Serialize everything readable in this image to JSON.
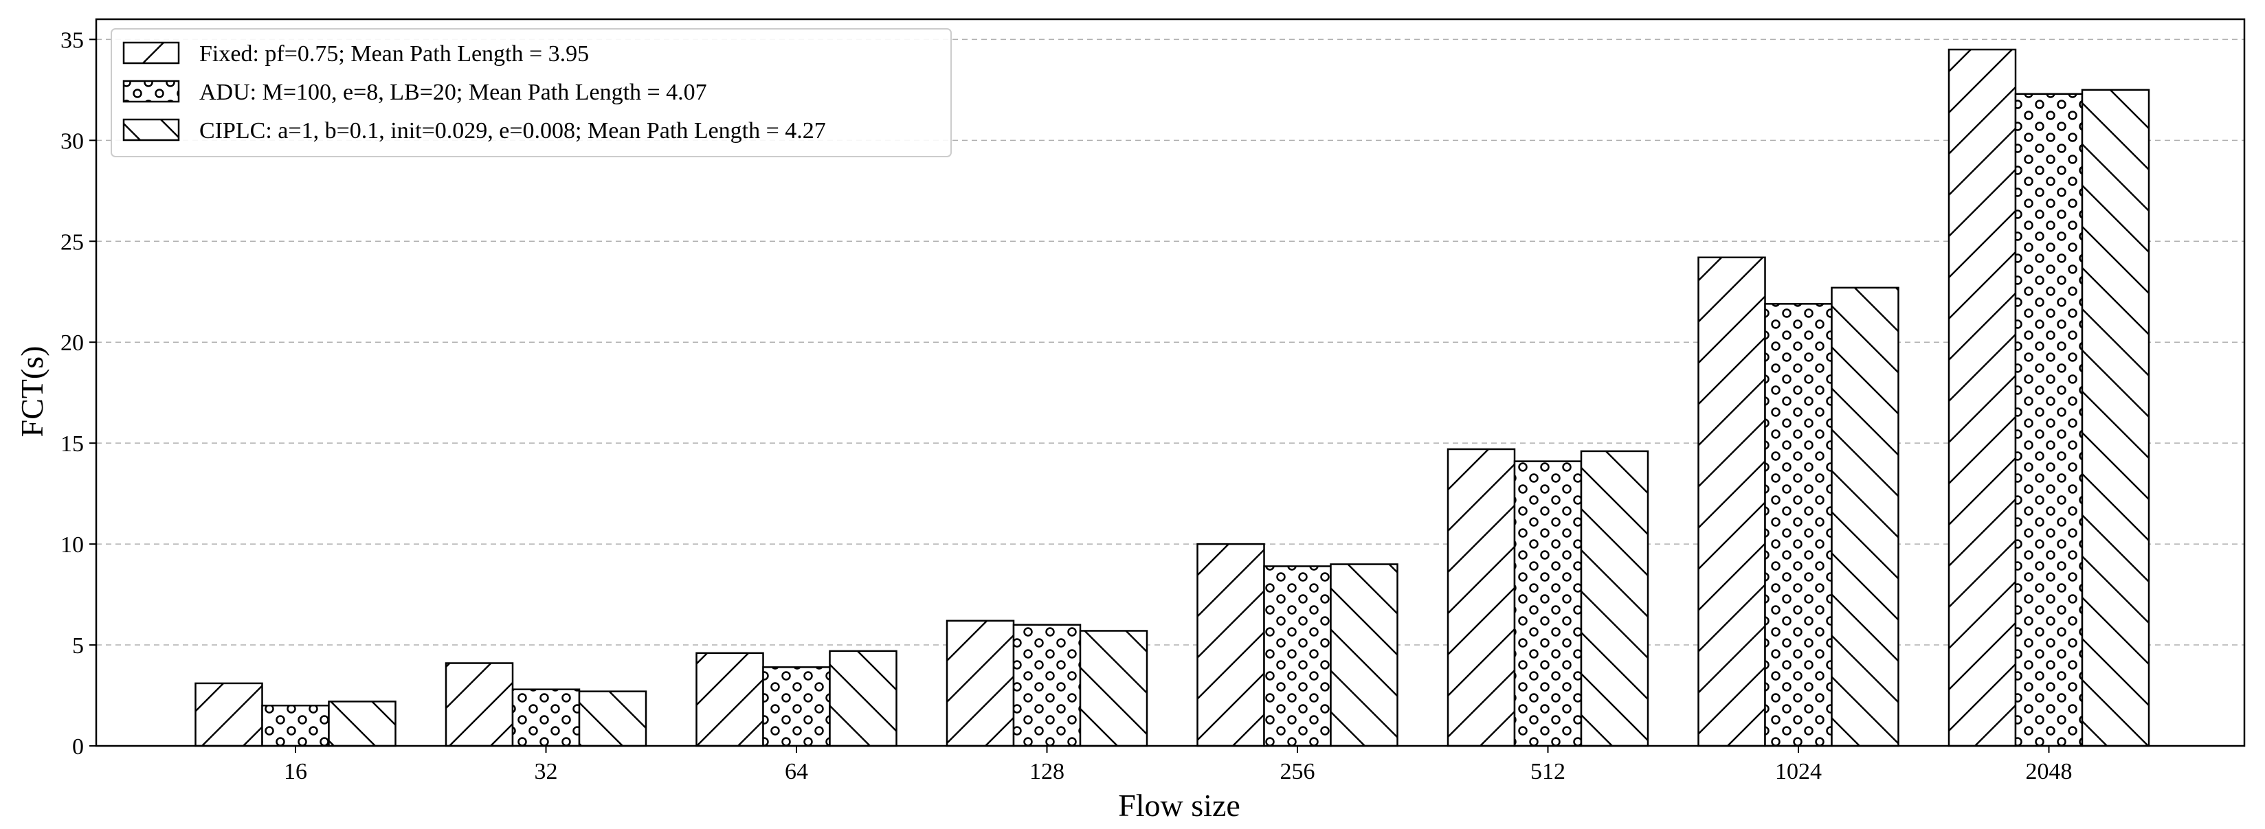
{
  "chart_data": {
    "type": "bar",
    "title": "",
    "xlabel": "Flow size",
    "ylabel": "FCT(s)",
    "categories": [
      "16",
      "32",
      "64",
      "128",
      "256",
      "512",
      "1024",
      "2048"
    ],
    "ylim": [
      0,
      36
    ],
    "yticks": [
      0,
      5,
      10,
      15,
      20,
      25,
      30,
      35
    ],
    "grid": "y-dashed",
    "legend_position": "top-left",
    "series": [
      {
        "name": "Fixed: pf=0.75; Mean Path Length = 3.95",
        "pattern": "forward-diagonal-hatch",
        "values": [
          3.1,
          4.1,
          4.6,
          6.2,
          10.0,
          14.7,
          24.2,
          34.5
        ]
      },
      {
        "name": "ADU: M=100, e=8, LB=20; Mean Path Length = 4.07",
        "pattern": "small-circles",
        "values": [
          2.0,
          2.8,
          3.9,
          6.0,
          8.9,
          14.1,
          21.9,
          32.3
        ]
      },
      {
        "name": "CIPLC: a=1, b=0.1, init=0.029, e=0.008; Mean Path Length = 4.27",
        "pattern": "back-diagonal-hatch",
        "values": [
          2.2,
          2.7,
          4.7,
          5.7,
          9.0,
          14.6,
          22.7,
          32.5
        ]
      }
    ]
  },
  "colors": {
    "bar_fill": "#ffffff",
    "bar_stroke": "#000000",
    "grid": "#b0b0b0",
    "axis": "#000000"
  }
}
